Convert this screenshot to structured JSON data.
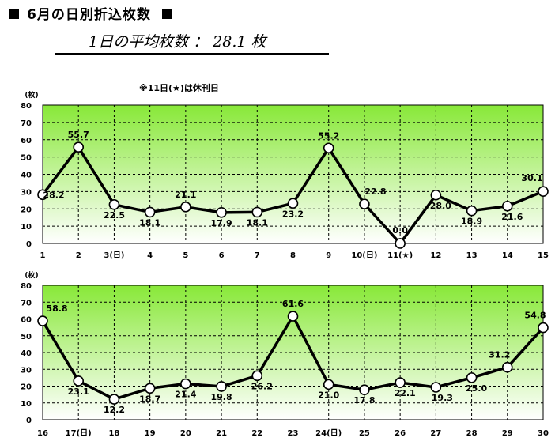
{
  "header": {
    "title": "6月の日別折込枚数",
    "average": "1日の平均枚数 ： 28.1 枚"
  },
  "note": "※11日(★)は休刊日",
  "colors": {
    "line": "#000000",
    "marker_fill": "#ffffff",
    "grad_top": "#88e838",
    "grad_bottom": "#ffffff"
  },
  "chart_data": [
    {
      "type": "line",
      "ylabel": "(枚)",
      "ylim": [
        0,
        80
      ],
      "yticks": [
        "0",
        "10",
        "20",
        "30",
        "40",
        "50",
        "60",
        "70",
        "80"
      ],
      "categories": [
        "1",
        "2",
        "3(日)",
        "4",
        "5",
        "6",
        "7",
        "8",
        "9",
        "10(日)",
        "11(★)",
        "12",
        "13",
        "14",
        "15"
      ],
      "values": [
        28.2,
        55.7,
        22.5,
        18.1,
        21.1,
        17.9,
        18.1,
        23.2,
        55.2,
        22.8,
        0.0,
        28.0,
        18.9,
        21.6,
        30.1
      ],
      "labels": [
        "28.2",
        "55.7",
        "22.5",
        "18.1",
        "21.1",
        "17.9",
        "18.1",
        "23.2",
        "55.2",
        "22.8",
        "0.0",
        "28.0",
        "18.9",
        "21.6",
        "30.1"
      ],
      "grid": true
    },
    {
      "type": "line",
      "ylabel": "(枚)",
      "ylim": [
        0,
        80
      ],
      "yticks": [
        "0",
        "10",
        "20",
        "30",
        "40",
        "50",
        "60",
        "70",
        "80"
      ],
      "categories": [
        "16",
        "17(日)",
        "18",
        "19",
        "20",
        "21",
        "22",
        "23",
        "24(日)",
        "25",
        "26",
        "27",
        "28",
        "29",
        "30"
      ],
      "values": [
        58.8,
        23.1,
        12.2,
        18.7,
        21.4,
        19.8,
        26.2,
        61.6,
        21.0,
        17.8,
        22.1,
        19.3,
        25.0,
        31.2,
        54.8
      ],
      "labels": [
        "58.8",
        "23.1",
        "12.2",
        "18.7",
        "21.4",
        "19.8",
        "26.2",
        "61.6",
        "21.0",
        "17.8",
        "22.1",
        "19.3",
        "25.0",
        "31.2",
        "54.8"
      ],
      "grid": true
    }
  ]
}
